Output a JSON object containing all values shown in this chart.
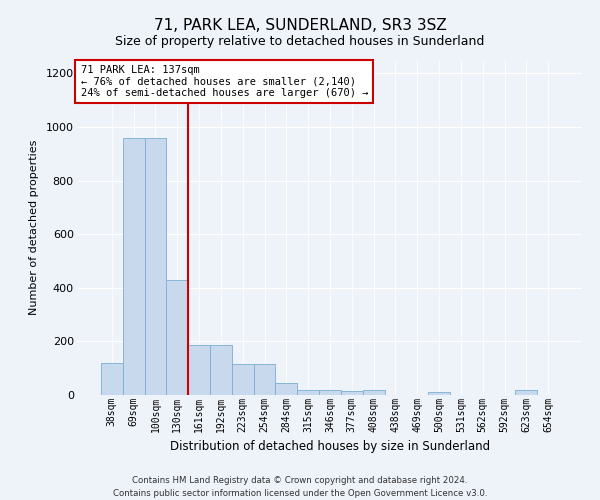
{
  "title": "71, PARK LEA, SUNDERLAND, SR3 3SZ",
  "subtitle": "Size of property relative to detached houses in Sunderland",
  "xlabel": "Distribution of detached houses by size in Sunderland",
  "ylabel": "Number of detached properties",
  "categories": [
    "38sqm",
    "69sqm",
    "100sqm",
    "130sqm",
    "161sqm",
    "192sqm",
    "223sqm",
    "254sqm",
    "284sqm",
    "315sqm",
    "346sqm",
    "377sqm",
    "408sqm",
    "438sqm",
    "469sqm",
    "500sqm",
    "531sqm",
    "562sqm",
    "592sqm",
    "623sqm",
    "654sqm"
  ],
  "values": [
    120,
    958,
    958,
    430,
    185,
    185,
    115,
    115,
    45,
    20,
    18,
    15,
    20,
    0,
    0,
    10,
    0,
    0,
    0,
    20,
    0
  ],
  "bar_color": "#c8d9ee",
  "bar_edge_color": "#7aafd4",
  "vline_x": 3.5,
  "vline_color": "#cc0000",
  "annotation_text": "71 PARK LEA: 137sqm\n← 76% of detached houses are smaller (2,140)\n24% of semi-detached houses are larger (670) →",
  "annotation_box_color": "#ffffff",
  "annotation_box_edge_color": "#cc0000",
  "ylim": [
    0,
    1250
  ],
  "yticks": [
    0,
    200,
    400,
    600,
    800,
    1000,
    1200
  ],
  "footer_text": "Contains HM Land Registry data © Crown copyright and database right 2024.\nContains public sector information licensed under the Open Government Licence v3.0.",
  "background_color": "#eef2f9",
  "plot_bg_color": "#eef2f9",
  "title_fontsize": 11,
  "subtitle_fontsize": 9
}
